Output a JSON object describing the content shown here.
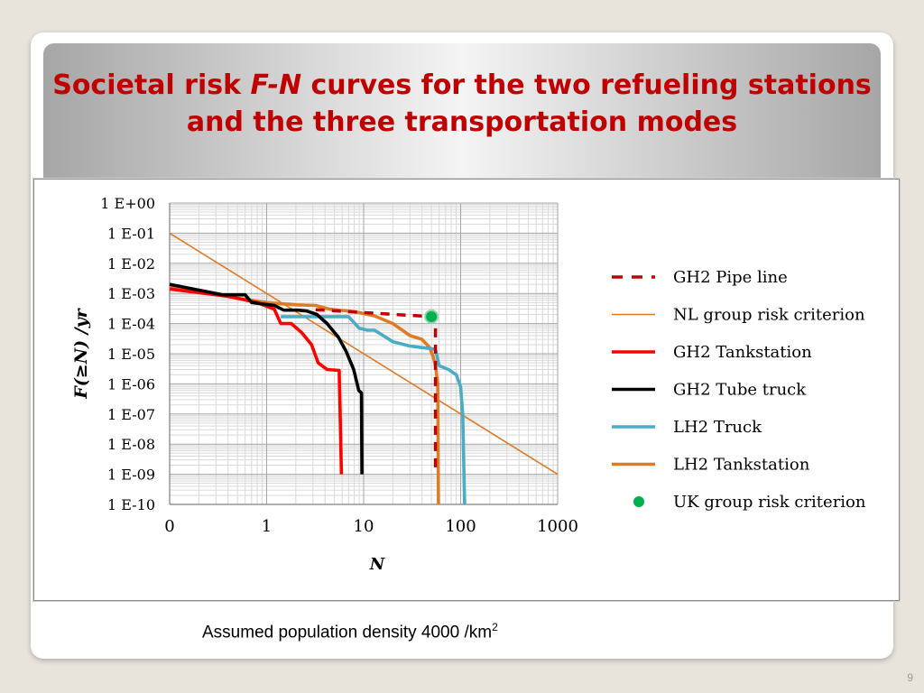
{
  "slide": {
    "title_part1": "Societal risk ",
    "title_italic": "F-N",
    "title_part2": " curves for the two refueling stations and the three transportation modes",
    "caption_text": "Assumed population density 4000 /km",
    "caption_sup": "2",
    "page_number": "9"
  },
  "chart_data": {
    "type": "line",
    "xscale": "log",
    "yscale": "log",
    "xlabel": "N",
    "ylabel": "F(≥N) /yr",
    "xticks": [
      {
        "value": 0.1,
        "label": "0"
      },
      {
        "value": 1,
        "label": "1"
      },
      {
        "value": 10,
        "label": "10"
      },
      {
        "value": 100,
        "label": "100"
      },
      {
        "value": 1000,
        "label": "1000"
      }
    ],
    "yticks": [
      {
        "value": 1.0,
        "label": "1 E+00"
      },
      {
        "value": 0.1,
        "label": "1 E-01"
      },
      {
        "value": 0.01,
        "label": "1 E-02"
      },
      {
        "value": 0.001,
        "label": "1 E-03"
      },
      {
        "value": 0.0001,
        "label": "1 E-04"
      },
      {
        "value": 1e-05,
        "label": "1 E-05"
      },
      {
        "value": 1e-06,
        "label": "1 E-06"
      },
      {
        "value": 1e-07,
        "label": "1 E-07"
      },
      {
        "value": 1e-08,
        "label": "1 E-08"
      },
      {
        "value": 1e-09,
        "label": "1 E-09"
      },
      {
        "value": 1e-10,
        "label": "1 E-10"
      }
    ],
    "xlim": [
      0.1,
      1000
    ],
    "ylim": [
      1e-10,
      1
    ],
    "grid": true,
    "legend_position": "right",
    "series": [
      {
        "name": "GH2 Pipe line",
        "color": "#c00000",
        "style": "dashed",
        "points": [
          [
            3.2,
            0.00029
          ],
          [
            50,
            0.00017
          ],
          [
            55,
            0.00014
          ],
          [
            55,
            1e-09
          ]
        ]
      },
      {
        "name": "NL group risk criterion",
        "color": "#e07b24",
        "style": "thin",
        "points": [
          [
            0.1,
            0.1
          ],
          [
            1000,
            1e-09
          ]
        ]
      },
      {
        "name": "GH2 Tankstation",
        "color": "#ff0000",
        "style": "solid",
        "points": [
          [
            0.1,
            0.0014
          ],
          [
            0.4,
            0.0008
          ],
          [
            0.8,
            0.0005
          ],
          [
            1.2,
            0.0003
          ],
          [
            1.4,
            0.0001
          ],
          [
            1.8,
            0.0001
          ],
          [
            2.3,
            5e-05
          ],
          [
            2.9,
            2e-05
          ],
          [
            3.4,
            5e-06
          ],
          [
            4.2,
            3e-06
          ],
          [
            5.6,
            2.8e-06
          ],
          [
            5.9,
            1e-09
          ]
        ]
      },
      {
        "name": "GH2 Tube truck",
        "color": "#000000",
        "style": "solid",
        "points": [
          [
            0.1,
            0.002
          ],
          [
            0.35,
            0.0009
          ],
          [
            0.6,
            0.0009
          ],
          [
            0.7,
            0.0005
          ],
          [
            1.2,
            0.0004
          ],
          [
            1.5,
            0.00028
          ],
          [
            2.1,
            0.00028
          ],
          [
            2.6,
            0.00026
          ],
          [
            3.3,
            0.0002
          ],
          [
            4.2,
            0.0001
          ],
          [
            5.5,
            3.5e-05
          ],
          [
            6.6,
            1.2e-05
          ],
          [
            7.9,
            3e-06
          ],
          [
            8.9,
            6e-07
          ],
          [
            9.5,
            5e-07
          ],
          [
            9.6,
            1e-09
          ]
        ]
      },
      {
        "name": "LH2 Truck",
        "color": "#4bacc6",
        "style": "solid",
        "points": [
          [
            1.4,
            0.00017
          ],
          [
            3.0,
            0.00017
          ],
          [
            7.0,
            0.00017
          ],
          [
            9.0,
            7e-05
          ],
          [
            11,
            6e-05
          ],
          [
            13,
            6e-05
          ],
          [
            20,
            2.5e-05
          ],
          [
            30,
            1.8e-05
          ],
          [
            40,
            1.6e-05
          ],
          [
            55,
            1.4e-05
          ],
          [
            60,
            4e-06
          ],
          [
            75,
            3e-06
          ],
          [
            90,
            2e-06
          ],
          [
            100,
            8e-07
          ],
          [
            105,
            1e-07
          ],
          [
            110,
            1e-10
          ]
        ]
      },
      {
        "name": "LH2 Tankstation",
        "color": "#e07b24",
        "style": "solid",
        "points": [
          [
            0.1,
            0.0017
          ],
          [
            0.5,
            0.0007
          ],
          [
            1.0,
            0.0005
          ],
          [
            2.0,
            0.00042
          ],
          [
            3.2,
            0.0004
          ],
          [
            4.5,
            0.0003
          ],
          [
            8.0,
            0.00025
          ],
          [
            13,
            0.00018
          ],
          [
            20,
            0.0001
          ],
          [
            30,
            4e-05
          ],
          [
            40,
            3e-05
          ],
          [
            48,
            1.6e-05
          ],
          [
            52,
            8e-06
          ],
          [
            55,
            4e-06
          ],
          [
            58,
            1e-06
          ],
          [
            59,
            1e-10
          ]
        ]
      }
    ],
    "points": [
      {
        "name": "UK group risk criterion",
        "color": "#00b050",
        "x": 50,
        "y": 0.00017
      }
    ]
  }
}
